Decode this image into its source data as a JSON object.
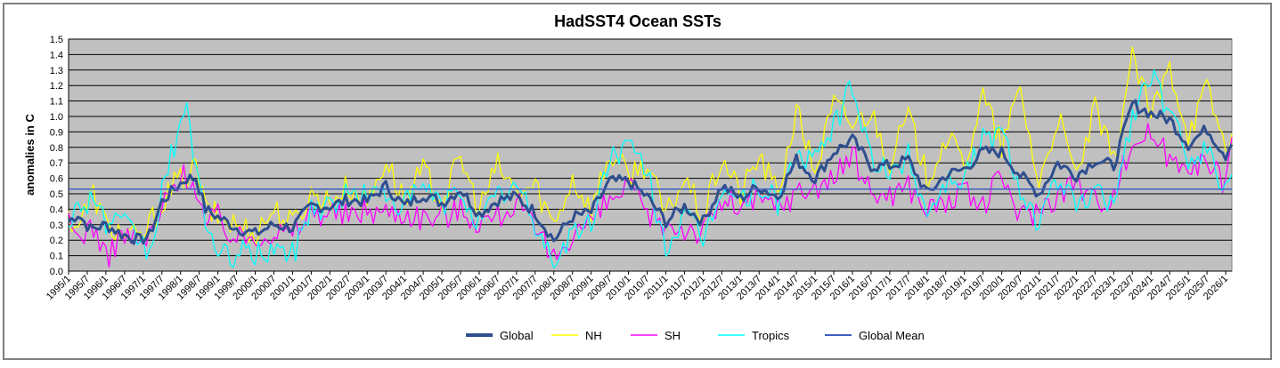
{
  "chart_data": {
    "type": "line",
    "title": "HadSST4 Ocean SSTs",
    "ylabel": "anomalies in C",
    "xlabel": "",
    "ylim": [
      0.0,
      1.5
    ],
    "ytick_step": 0.1,
    "yticks": [
      "0.0",
      "0.1",
      "0.2",
      "0.3",
      "0.4",
      "0.5",
      "0.6",
      "0.7",
      "0.8",
      "0.9",
      "1.0",
      "1.1",
      "1.2",
      "1.3",
      "1.4",
      "1.5"
    ],
    "grid": true,
    "legend_position": "bottom",
    "plot_background": "#c0c0c0",
    "x_start": "1995/1",
    "x_end": "2026/3",
    "x_tick_labels": [
      "1995/1",
      "1995/7",
      "1996/1",
      "1996/7",
      "1997/1",
      "1997/7",
      "1998/1",
      "1998/7",
      "1999/1",
      "1999/7",
      "2000/1",
      "2000/7",
      "2001/1",
      "2001/7",
      "2002/1",
      "2002/7",
      "2003/1",
      "2003/7",
      "2004/1",
      "2004/7",
      "2005/1",
      "2005/7",
      "2006/1",
      "2006/7",
      "2007/1",
      "2007/7",
      "2008/1",
      "2008/7",
      "2009/1",
      "2009/7",
      "2010/1",
      "2010/7",
      "2011/1",
      "2011/7",
      "2012/1",
      "2012/7",
      "2013/1",
      "2013/7",
      "2014/1",
      "2014/7",
      "2015/1",
      "2015/7",
      "2016/1",
      "2016/7",
      "2017/1",
      "2017/7",
      "2018/1",
      "2018/7",
      "2019/1",
      "2019/7",
      "2020/1",
      "2020/7",
      "2021/1",
      "2021/7",
      "2022/1",
      "2022/7",
      "2023/1",
      "2023/7",
      "2024/1",
      "2024/7",
      "2025/1",
      "2025/7",
      "2026/1"
    ],
    "reference_line": {
      "name": "Global Mean",
      "value": 0.53,
      "color": "#3f5fbf"
    },
    "series": [
      {
        "name": "Global",
        "color": "#2f4f8f",
        "width": 3,
        "anchors": [
          [
            "1995/1",
            0.32
          ],
          [
            "1995/4",
            0.37
          ],
          [
            "1995/8",
            0.27
          ],
          [
            "1996/1",
            0.3
          ],
          [
            "1996/6",
            0.24
          ],
          [
            "1996/12",
            0.2
          ],
          [
            "1997/3",
            0.23
          ],
          [
            "1997/7",
            0.45
          ],
          [
            "1997/12",
            0.55
          ],
          [
            "1998/3",
            0.6
          ],
          [
            "1998/6",
            0.6
          ],
          [
            "1998/9",
            0.4
          ],
          [
            "1999/1",
            0.35
          ],
          [
            "1999/7",
            0.28
          ],
          [
            "2000/1",
            0.24
          ],
          [
            "2000/7",
            0.3
          ],
          [
            "2001/1",
            0.28
          ],
          [
            "2001/7",
            0.42
          ],
          [
            "2002/1",
            0.42
          ],
          [
            "2002/7",
            0.46
          ],
          [
            "2003/1",
            0.45
          ],
          [
            "2003/7",
            0.55
          ],
          [
            "2004/1",
            0.42
          ],
          [
            "2004/7",
            0.5
          ],
          [
            "2005/1",
            0.44
          ],
          [
            "2005/7",
            0.53
          ],
          [
            "2006/1",
            0.37
          ],
          [
            "2006/7",
            0.46
          ],
          [
            "2007/1",
            0.48
          ],
          [
            "2007/7",
            0.38
          ],
          [
            "2008/1",
            0.2
          ],
          [
            "2008/7",
            0.35
          ],
          [
            "2009/1",
            0.38
          ],
          [
            "2009/7",
            0.58
          ],
          [
            "2010/1",
            0.58
          ],
          [
            "2010/7",
            0.48
          ],
          [
            "2011/1",
            0.32
          ],
          [
            "2011/7",
            0.42
          ],
          [
            "2012/1",
            0.32
          ],
          [
            "2012/7",
            0.55
          ],
          [
            "2013/1",
            0.47
          ],
          [
            "2013/7",
            0.55
          ],
          [
            "2014/1",
            0.48
          ],
          [
            "2014/7",
            0.72
          ],
          [
            "2015/1",
            0.6
          ],
          [
            "2015/7",
            0.77
          ],
          [
            "2016/1",
            0.85
          ],
          [
            "2016/7",
            0.68
          ],
          [
            "2017/1",
            0.68
          ],
          [
            "2017/7",
            0.72
          ],
          [
            "2018/1",
            0.5
          ],
          [
            "2018/7",
            0.62
          ],
          [
            "2019/1",
            0.66
          ],
          [
            "2019/7",
            0.77
          ],
          [
            "2020/1",
            0.77
          ],
          [
            "2020/7",
            0.62
          ],
          [
            "2021/1",
            0.5
          ],
          [
            "2021/7",
            0.7
          ],
          [
            "2022/1",
            0.62
          ],
          [
            "2022/7",
            0.72
          ],
          [
            "2023/1",
            0.68
          ],
          [
            "2023/7",
            1.08
          ],
          [
            "2024/1",
            1.02
          ],
          [
            "2024/7",
            0.98
          ],
          [
            "2025/1",
            0.82
          ],
          [
            "2025/7",
            0.92
          ],
          [
            "2026/1",
            0.75
          ],
          [
            "2026/3",
            0.85
          ]
        ]
      },
      {
        "name": "NH",
        "color": "#ffff00",
        "width": 1.3,
        "anchors": [
          [
            "1995/1",
            0.35
          ],
          [
            "1995/4",
            0.3
          ],
          [
            "1995/9",
            0.5
          ],
          [
            "1996/1",
            0.3
          ],
          [
            "1996/6",
            0.25
          ],
          [
            "1996/12",
            0.2
          ],
          [
            "1997/3",
            0.3
          ],
          [
            "1997/7",
            0.45
          ],
          [
            "1997/12",
            0.58
          ],
          [
            "1998/3",
            0.6
          ],
          [
            "1998/6",
            0.68
          ],
          [
            "1998/9",
            0.4
          ],
          [
            "1999/1",
            0.35
          ],
          [
            "1999/7",
            0.3
          ],
          [
            "2000/1",
            0.25
          ],
          [
            "2000/7",
            0.4
          ],
          [
            "2001/1",
            0.3
          ],
          [
            "2001/7",
            0.5
          ],
          [
            "2002/1",
            0.45
          ],
          [
            "2002/7",
            0.55
          ],
          [
            "2003/1",
            0.45
          ],
          [
            "2003/7",
            0.72
          ],
          [
            "2004/1",
            0.45
          ],
          [
            "2004/7",
            0.65
          ],
          [
            "2005/1",
            0.45
          ],
          [
            "2005/7",
            0.73
          ],
          [
            "2006/1",
            0.4
          ],
          [
            "2006/7",
            0.68
          ],
          [
            "2007/1",
            0.5
          ],
          [
            "2007/7",
            0.55
          ],
          [
            "2008/1",
            0.3
          ],
          [
            "2008/7",
            0.6
          ],
          [
            "2009/1",
            0.4
          ],
          [
            "2009/7",
            0.76
          ],
          [
            "2010/1",
            0.62
          ],
          [
            "2010/7",
            0.7
          ],
          [
            "2011/1",
            0.35
          ],
          [
            "2011/7",
            0.6
          ],
          [
            "2012/1",
            0.35
          ],
          [
            "2012/7",
            0.73
          ],
          [
            "2013/1",
            0.5
          ],
          [
            "2013/7",
            0.74
          ],
          [
            "2014/1",
            0.5
          ],
          [
            "2014/7",
            1.03
          ],
          [
            "2015/1",
            0.65
          ],
          [
            "2015/7",
            1.08
          ],
          [
            "2016/1",
            0.95
          ],
          [
            "2016/7",
            1.03
          ],
          [
            "2017/1",
            0.72
          ],
          [
            "2017/7",
            1.0
          ],
          [
            "2018/1",
            0.6
          ],
          [
            "2018/7",
            0.86
          ],
          [
            "2019/1",
            0.7
          ],
          [
            "2019/7",
            1.13
          ],
          [
            "2020/1",
            0.8
          ],
          [
            "2020/7",
            1.18
          ],
          [
            "2021/1",
            0.55
          ],
          [
            "2021/7",
            1.0
          ],
          [
            "2022/1",
            0.6
          ],
          [
            "2022/7",
            1.04
          ],
          [
            "2023/1",
            0.7
          ],
          [
            "2023/7",
            1.4
          ],
          [
            "2024/1",
            1.0
          ],
          [
            "2024/7",
            1.32
          ],
          [
            "2025/1",
            0.9
          ],
          [
            "2025/7",
            1.18
          ],
          [
            "2026/1",
            0.8
          ],
          [
            "2026/3",
            0.9
          ]
        ]
      },
      {
        "name": "SH",
        "color": "#ff00ff",
        "width": 1.3,
        "anchors": [
          [
            "1995/1",
            0.3
          ],
          [
            "1995/4",
            0.22
          ],
          [
            "1995/9",
            0.3
          ],
          [
            "1996/1",
            0.07
          ],
          [
            "1996/6",
            0.25
          ],
          [
            "1996/12",
            0.17
          ],
          [
            "1997/3",
            0.22
          ],
          [
            "1997/7",
            0.4
          ],
          [
            "1997/12",
            0.6
          ],
          [
            "1998/3",
            0.62
          ],
          [
            "1998/6",
            0.55
          ],
          [
            "1998/9",
            0.3
          ],
          [
            "1999/1",
            0.35
          ],
          [
            "1999/7",
            0.2
          ],
          [
            "2000/1",
            0.24
          ],
          [
            "2000/7",
            0.25
          ],
          [
            "2001/1",
            0.24
          ],
          [
            "2001/7",
            0.38
          ],
          [
            "2002/1",
            0.38
          ],
          [
            "2002/7",
            0.35
          ],
          [
            "2003/1",
            0.4
          ],
          [
            "2003/7",
            0.38
          ],
          [
            "2004/1",
            0.38
          ],
          [
            "2004/7",
            0.35
          ],
          [
            "2005/1",
            0.35
          ],
          [
            "2005/7",
            0.4
          ],
          [
            "2006/1",
            0.32
          ],
          [
            "2006/7",
            0.35
          ],
          [
            "2007/1",
            0.45
          ],
          [
            "2007/7",
            0.25
          ],
          [
            "2008/1",
            0.08
          ],
          [
            "2008/7",
            0.25
          ],
          [
            "2009/1",
            0.32
          ],
          [
            "2009/7",
            0.45
          ],
          [
            "2010/1",
            0.55
          ],
          [
            "2010/7",
            0.35
          ],
          [
            "2011/1",
            0.3
          ],
          [
            "2011/7",
            0.28
          ],
          [
            "2012/1",
            0.25
          ],
          [
            "2012/7",
            0.45
          ],
          [
            "2013/1",
            0.42
          ],
          [
            "2013/7",
            0.45
          ],
          [
            "2014/1",
            0.42
          ],
          [
            "2014/7",
            0.5
          ],
          [
            "2015/1",
            0.55
          ],
          [
            "2015/7",
            0.6
          ],
          [
            "2016/1",
            0.75
          ],
          [
            "2016/7",
            0.5
          ],
          [
            "2017/1",
            0.5
          ],
          [
            "2017/7",
            0.55
          ],
          [
            "2018/1",
            0.4
          ],
          [
            "2018/7",
            0.45
          ],
          [
            "2019/1",
            0.5
          ],
          [
            "2019/7",
            0.42
          ],
          [
            "2020/1",
            0.62
          ],
          [
            "2020/7",
            0.35
          ],
          [
            "2021/1",
            0.4
          ],
          [
            "2021/7",
            0.5
          ],
          [
            "2022/1",
            0.58
          ],
          [
            "2022/7",
            0.45
          ],
          [
            "2023/1",
            0.5
          ],
          [
            "2023/7",
            0.83
          ],
          [
            "2024/1",
            0.9
          ],
          [
            "2024/7",
            0.72
          ],
          [
            "2025/1",
            0.72
          ],
          [
            "2025/7",
            0.68
          ],
          [
            "2026/1",
            0.58
          ],
          [
            "2026/3",
            0.82
          ]
        ]
      },
      {
        "name": "Tropics",
        "color": "#00ffff",
        "width": 1.3,
        "anchors": [
          [
            "1995/1",
            0.35
          ],
          [
            "1995/4",
            0.4
          ],
          [
            "1995/9",
            0.5
          ],
          [
            "1996/1",
            0.3
          ],
          [
            "1996/6",
            0.3
          ],
          [
            "1996/12",
            0.2
          ],
          [
            "1997/3",
            0.1
          ],
          [
            "1997/7",
            0.5
          ],
          [
            "1997/12",
            0.9
          ],
          [
            "1998/3",
            1.0
          ],
          [
            "1998/6",
            0.7
          ],
          [
            "1998/9",
            0.35
          ],
          [
            "1999/1",
            0.07
          ],
          [
            "1999/7",
            0.12
          ],
          [
            "2000/1",
            0.1
          ],
          [
            "2000/7",
            0.15
          ],
          [
            "2001/1",
            0.1
          ],
          [
            "2001/7",
            0.42
          ],
          [
            "2002/1",
            0.42
          ],
          [
            "2002/7",
            0.5
          ],
          [
            "2003/1",
            0.5
          ],
          [
            "2003/7",
            0.5
          ],
          [
            "2004/1",
            0.42
          ],
          [
            "2004/7",
            0.55
          ],
          [
            "2005/1",
            0.42
          ],
          [
            "2005/7",
            0.52
          ],
          [
            "2006/1",
            0.32
          ],
          [
            "2006/7",
            0.48
          ],
          [
            "2007/1",
            0.55
          ],
          [
            "2007/7",
            0.3
          ],
          [
            "2008/1",
            0.05
          ],
          [
            "2008/7",
            0.25
          ],
          [
            "2009/1",
            0.3
          ],
          [
            "2009/7",
            0.75
          ],
          [
            "2010/1",
            0.8
          ],
          [
            "2010/7",
            0.65
          ],
          [
            "2011/1",
            0.15
          ],
          [
            "2011/7",
            0.35
          ],
          [
            "2012/1",
            0.2
          ],
          [
            "2012/7",
            0.55
          ],
          [
            "2013/1",
            0.45
          ],
          [
            "2013/7",
            0.55
          ],
          [
            "2014/1",
            0.45
          ],
          [
            "2014/7",
            0.75
          ],
          [
            "2015/1",
            0.7
          ],
          [
            "2015/7",
            0.95
          ],
          [
            "2016/1",
            1.18
          ],
          [
            "2016/7",
            0.75
          ],
          [
            "2017/1",
            0.6
          ],
          [
            "2017/7",
            0.75
          ],
          [
            "2018/1",
            0.38
          ],
          [
            "2018/7",
            0.58
          ],
          [
            "2019/1",
            0.62
          ],
          [
            "2019/7",
            0.85
          ],
          [
            "2020/1",
            0.9
          ],
          [
            "2020/7",
            0.55
          ],
          [
            "2021/1",
            0.3
          ],
          [
            "2021/7",
            0.6
          ],
          [
            "2022/1",
            0.4
          ],
          [
            "2022/7",
            0.5
          ],
          [
            "2023/1",
            0.45
          ],
          [
            "2023/7",
            1.0
          ],
          [
            "2024/1",
            1.28
          ],
          [
            "2024/7",
            1.0
          ],
          [
            "2025/1",
            0.75
          ],
          [
            "2025/7",
            0.8
          ],
          [
            "2026/1",
            0.5
          ],
          [
            "2026/3",
            0.7
          ]
        ]
      }
    ],
    "legend": [
      "Global",
      "NH",
      "SH",
      "Tropics",
      "Global Mean"
    ]
  }
}
